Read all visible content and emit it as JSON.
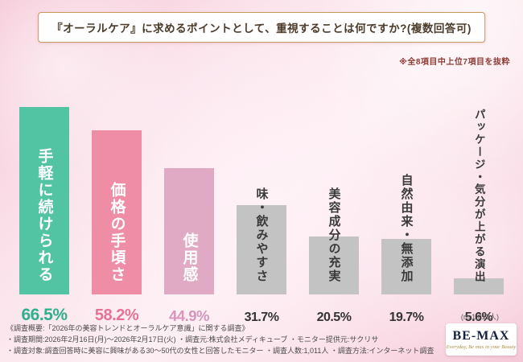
{
  "title": "『オーラルケア』に求めるポイントとして、重視することは何ですか?(複数回答可)",
  "note": "※全8項目中上位7項目を抜粋",
  "sample_note": "(n=1,011人)",
  "chart_data": {
    "type": "bar",
    "title": "『オーラルケア』に求めるポイントとして、重視することは何ですか?(複数回答可)",
    "categories": [
      "手軽に続けられる",
      "価格の手頃さ",
      "使用感",
      "味・飲みやすさ",
      "美容成分の充実",
      "自然由来・無添加",
      "パッケージ・気分が上がる演出"
    ],
    "values": [
      66.5,
      58.2,
      44.9,
      31.7,
      20.5,
      19.7,
      5.6
    ],
    "value_labels": [
      "66.5%",
      "58.2%",
      "44.9%",
      "31.7%",
      "20.5%",
      "19.7%",
      "5.6%"
    ],
    "bar_colors": [
      "#52c3a3",
      "#ef8da7",
      "#e0a9c4",
      "#c3c3c3",
      "#c3c3c3",
      "#c3c3c3",
      "#c3c3c3"
    ],
    "label_colors": [
      "#ffffff",
      "#ffffff",
      "#ffffff",
      "#3a3a3a",
      "#3a3a3a",
      "#3a3a3a",
      "#3a3a3a"
    ],
    "value_colors": [
      "#2eb08e",
      "#e87295",
      "#d795bb",
      "#333333",
      "#333333",
      "#333333",
      "#333333"
    ],
    "xlabel": "",
    "ylabel": "",
    "ylim": [
      0,
      70
    ],
    "grid": false,
    "legend": false,
    "sample_size": "n=1,011"
  },
  "footer": {
    "line1": "《調査概要:「2026年の美容トレンドとオーラルケア意識」に関する調査》",
    "line2": "・調査期間:2026年2月16日(月)〜2026年2月17日(火) ・調査元:株式会社メディキューブ ・モニター提供元:サクリサ",
    "line3": "・調査対象:調査回答時に美容に興味がある30〜50代の女性と回答したモニター ・調査人数:1,011人 ・調査方法:インターネット調査"
  },
  "logo": {
    "name": "BE-MAX",
    "tagline": "Everyday, Be max in your Beauty"
  }
}
